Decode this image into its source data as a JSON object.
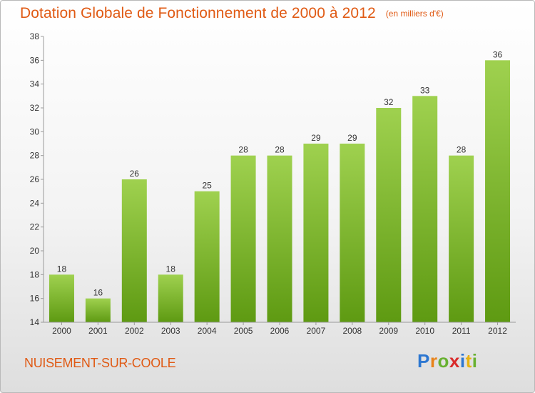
{
  "header": {
    "title": "Dotation Globale de Fonctionnement de 2000 à 2012",
    "unit_note": "(en milliers d'€)"
  },
  "footer": {
    "commune": "NUISEMENT-SUR-COOLE",
    "brand": "Proxiti"
  },
  "colors": {
    "accent": "#e05a14",
    "bar_light": "#9fd14f",
    "bar_dark": "#5e9a12"
  },
  "chart_data": {
    "type": "bar",
    "title": "Dotation Globale de Fonctionnement de 2000 à 2012",
    "subtitle": "(en milliers d'€)",
    "xlabel": "",
    "ylabel": "",
    "categories": [
      "2000",
      "2001",
      "2002",
      "2003",
      "2004",
      "2005",
      "2006",
      "2007",
      "2008",
      "2009",
      "2010",
      "2011",
      "2012"
    ],
    "values": [
      18,
      16,
      26,
      18,
      25,
      28,
      28,
      29,
      29,
      32,
      33,
      28,
      36
    ],
    "ylim": [
      14,
      38
    ],
    "yticks": [
      14,
      16,
      18,
      20,
      22,
      24,
      26,
      28,
      30,
      32,
      34,
      36,
      38
    ],
    "grid": false,
    "legend": "none",
    "data_labels": true
  }
}
